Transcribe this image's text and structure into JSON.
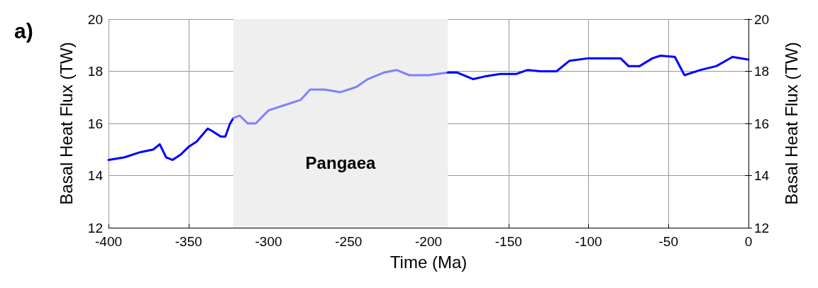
{
  "chart_data": {
    "type": "line",
    "xlabel": "Time (Ma)",
    "ylabel": "Basal Heat Flux (TW)",
    "y2label": "Basal Heat Flux (TW)",
    "annotations": [
      "a)"
    ],
    "xlim": [
      -400,
      0
    ],
    "xticks": [
      -400,
      -350,
      -300,
      -250,
      -200,
      -150,
      -100,
      -50,
      0
    ],
    "ylim": [
      12,
      20
    ],
    "yticks": [
      12,
      14,
      16,
      18,
      20
    ],
    "y2lim": [
      12,
      20
    ],
    "y2ticks": [
      12,
      14,
      16,
      18,
      20
    ],
    "grid": true,
    "marker": "none",
    "line_style": "solid",
    "bands": [
      {
        "axis": "x",
        "from": -322,
        "to": -188,
        "label": "Pangaea",
        "color": "#efefef"
      }
    ],
    "series": [
      {
        "color": "#0000ff",
        "x": [
          -400,
          -390,
          -380,
          -372,
          -368,
          -364,
          -360,
          -355,
          -350,
          -345,
          -338,
          -335,
          -330,
          -327,
          -324,
          -322
        ],
        "values": [
          14.6,
          14.7,
          14.9,
          15.0,
          15.2,
          14.7,
          14.6,
          14.8,
          15.1,
          15.3,
          15.8,
          15.7,
          15.5,
          15.5,
          16.0,
          16.2
        ]
      },
      {
        "color": "#8080ff",
        "x": [
          -322,
          -318,
          -313,
          -308,
          -300,
          -290,
          -280,
          -274,
          -265,
          -255,
          -245,
          -238,
          -228,
          -220,
          -212,
          -200,
          -188
        ],
        "values": [
          16.2,
          16.3,
          16.0,
          16.0,
          16.5,
          16.7,
          16.9,
          17.3,
          17.3,
          17.2,
          17.4,
          17.7,
          17.95,
          18.05,
          17.85,
          17.85,
          17.95
        ]
      },
      {
        "color": "#0000ff",
        "x": [
          -188,
          -182,
          -172,
          -165,
          -155,
          -145,
          -138,
          -130,
          -120,
          -112,
          -100,
          -90,
          -80,
          -75,
          -68,
          -60,
          -55,
          -46,
          -40,
          -30,
          -20,
          -10,
          0
        ],
        "values": [
          17.95,
          17.95,
          17.7,
          17.8,
          17.9,
          17.9,
          18.05,
          18.0,
          18.0,
          18.4,
          18.5,
          18.5,
          18.5,
          18.2,
          18.2,
          18.5,
          18.6,
          18.55,
          17.85,
          18.05,
          18.2,
          18.55,
          18.45
        ]
      }
    ]
  }
}
